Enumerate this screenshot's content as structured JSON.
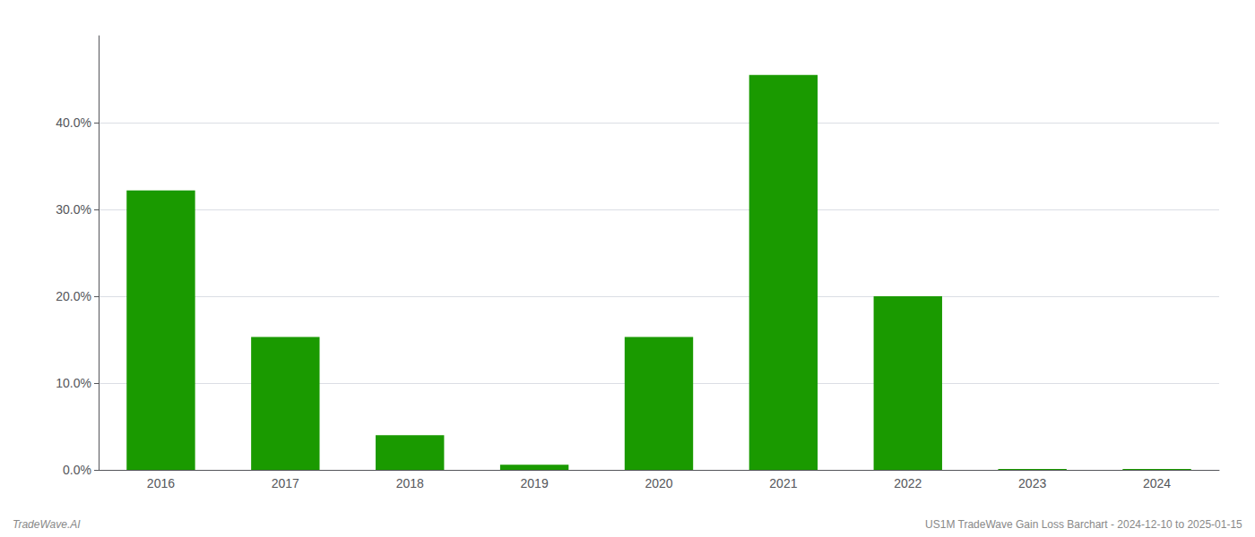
{
  "chart_data": {
    "type": "bar",
    "categories": [
      "2016",
      "2017",
      "2018",
      "2019",
      "2020",
      "2021",
      "2022",
      "2023",
      "2024"
    ],
    "values": [
      0.322,
      0.153,
      0.04,
      0.006,
      0.153,
      0.455,
      0.2,
      0.001,
      0.001
    ],
    "color": "#1a9a00",
    "ylim": [
      0.0,
      0.5
    ],
    "yticks": [
      {
        "value": 0.0,
        "label": "0.0%"
      },
      {
        "value": 0.1,
        "label": "10.0%"
      },
      {
        "value": 0.2,
        "label": "20.0%"
      },
      {
        "value": 0.3,
        "label": "30.0%"
      },
      {
        "value": 0.4,
        "label": "40.0%"
      }
    ],
    "grid": true,
    "annotations": [
      "TradeWave.AI",
      "US1M TradeWave Gain Loss Barchart - 2024-12-10 to 2025-01-15"
    ]
  }
}
